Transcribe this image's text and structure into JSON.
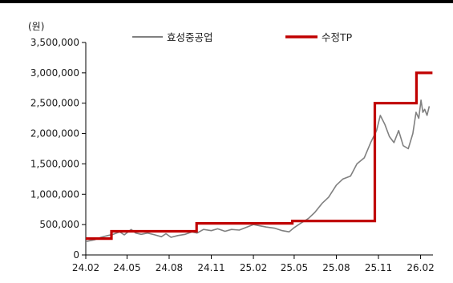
{
  "chart_data": {
    "type": "line",
    "title": "",
    "xlabel": "",
    "ylabel": "(원)",
    "ylim": [
      0,
      3500000
    ],
    "yticks": [
      0,
      500000,
      1000000,
      1500000,
      2000000,
      2500000,
      3000000,
      3500000
    ],
    "ytick_labels": [
      "0",
      "500,000",
      "1,000,000",
      "1,500,000",
      "2,000,000",
      "2,500,000",
      "3,000,000",
      "3,500,000"
    ],
    "xlim": [
      "2024-02-01",
      "2026-02-28"
    ],
    "xticks": [
      "2024-02-01",
      "2024-05-01",
      "2024-08-01",
      "2024-11-01",
      "2025-02-01",
      "2025-05-01",
      "2025-08-01",
      "2025-11-01",
      "2026-02-01"
    ],
    "xtick_labels": [
      "24.02",
      "24.05",
      "24.08",
      "24.11",
      "25.02",
      "25.05",
      "25.08",
      "25.11",
      "26.02"
    ],
    "grid": false,
    "legend": "top",
    "colors": {
      "price": "#808080",
      "target": "#c00000",
      "axis": "#000000",
      "topbar": "#000000"
    },
    "series": [
      {
        "name": "효성중공업",
        "style": "thin",
        "x": [
          "2024-02-01",
          "2024-02-20",
          "2024-03-05",
          "2024-03-20",
          "2024-04-01",
          "2024-04-15",
          "2024-04-25",
          "2024-05-10",
          "2024-05-20",
          "2024-06-01",
          "2024-06-15",
          "2024-07-01",
          "2024-07-15",
          "2024-07-25",
          "2024-08-05",
          "2024-08-20",
          "2024-09-05",
          "2024-09-20",
          "2024-10-01",
          "2024-10-15",
          "2024-11-01",
          "2024-11-15",
          "2024-12-01",
          "2024-12-15",
          "2025-01-01",
          "2025-01-15",
          "2025-02-01",
          "2025-02-15",
          "2025-03-01",
          "2025-03-20",
          "2025-04-05",
          "2025-04-20",
          "2025-05-01",
          "2025-05-15",
          "2025-06-01",
          "2025-06-15",
          "2025-07-01",
          "2025-07-15",
          "2025-08-01",
          "2025-08-15",
          "2025-09-01",
          "2025-09-15",
          "2025-10-01",
          "2025-10-15",
          "2025-10-28",
          "2025-11-05",
          "2025-11-15",
          "2025-11-25",
          "2025-12-05",
          "2025-12-15",
          "2025-12-25",
          "2026-01-05",
          "2026-01-15",
          "2026-01-22",
          "2026-01-28",
          "2026-02-02",
          "2026-02-06",
          "2026-02-10",
          "2026-02-15",
          "2026-02-20"
        ],
        "y": [
          220000,
          250000,
          290000,
          320000,
          340000,
          380000,
          330000,
          420000,
          360000,
          340000,
          360000,
          330000,
          300000,
          350000,
          290000,
          320000,
          340000,
          380000,
          360000,
          420000,
          400000,
          430000,
          390000,
          420000,
          410000,
          450000,
          500000,
          480000,
          460000,
          440000,
          400000,
          380000,
          450000,
          520000,
          600000,
          700000,
          850000,
          950000,
          1150000,
          1250000,
          1300000,
          1500000,
          1600000,
          1850000,
          2050000,
          2300000,
          2150000,
          1950000,
          1850000,
          2050000,
          1800000,
          1750000,
          2000000,
          2350000,
          2250000,
          2550000,
          2350000,
          2400000,
          2300000,
          2450000
        ]
      },
      {
        "name": "수정TP",
        "style": "thick",
        "x": [
          "2024-02-01",
          "2024-03-28",
          "2024-03-28",
          "2024-09-30",
          "2024-09-30",
          "2025-04-27",
          "2025-04-27",
          "2025-10-24",
          "2025-10-24",
          "2026-01-23",
          "2026-01-23",
          "2026-02-27"
        ],
        "y": [
          270000,
          270000,
          390000,
          390000,
          520000,
          520000,
          560000,
          560000,
          2500000,
          2500000,
          3000000,
          3000000
        ]
      }
    ]
  }
}
